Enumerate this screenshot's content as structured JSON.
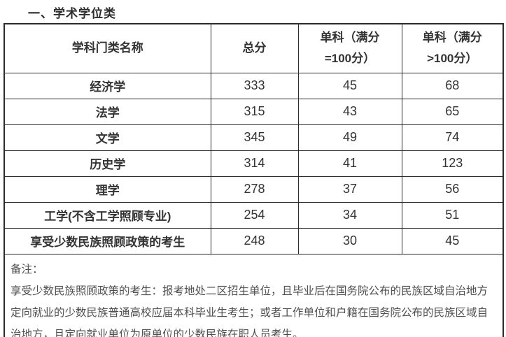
{
  "page": {
    "title": "一、学术学位类",
    "background_color": "#ffffff",
    "border_color": "#2b2b2b",
    "text_color": "#333333"
  },
  "table": {
    "columns": [
      {
        "line1": "学科门类名称",
        "line2": ""
      },
      {
        "line1": "总分",
        "line2": ""
      },
      {
        "line1": "单科（满分",
        "line2": "=100分）"
      },
      {
        "line1": "单科（满分",
        "line2": ">100分）"
      }
    ],
    "rows": [
      {
        "name": "经济学",
        "total": "333",
        "single100": "45",
        "singleOver100": "68"
      },
      {
        "name": "法学",
        "total": "315",
        "single100": "43",
        "singleOver100": "65"
      },
      {
        "name": "文学",
        "total": "345",
        "single100": "49",
        "singleOver100": "74"
      },
      {
        "name": "历史学",
        "total": "314",
        "single100": "41",
        "singleOver100": "123"
      },
      {
        "name": "理学",
        "total": "278",
        "single100": "37",
        "singleOver100": "56"
      },
      {
        "name": "工学(不含工学照顾专业)",
        "total": "254",
        "single100": "34",
        "singleOver100": "51"
      },
      {
        "name": "享受少数民族照顾政策的考生",
        "total": "248",
        "single100": "30",
        "singleOver100": "45"
      }
    ],
    "remark": {
      "label": "备注：",
      "text": "享受少数民族照顾政策的考生：报考地处二区招生单位，且毕业后在国务院公布的民族区域自治地方定向就业的少数民族普通高校应届本科毕业生考生；或者工作单位和户籍在国务院公布的民族区域自治地方，且定向就业单位为原单位的少数民族在职人员考生。"
    }
  }
}
